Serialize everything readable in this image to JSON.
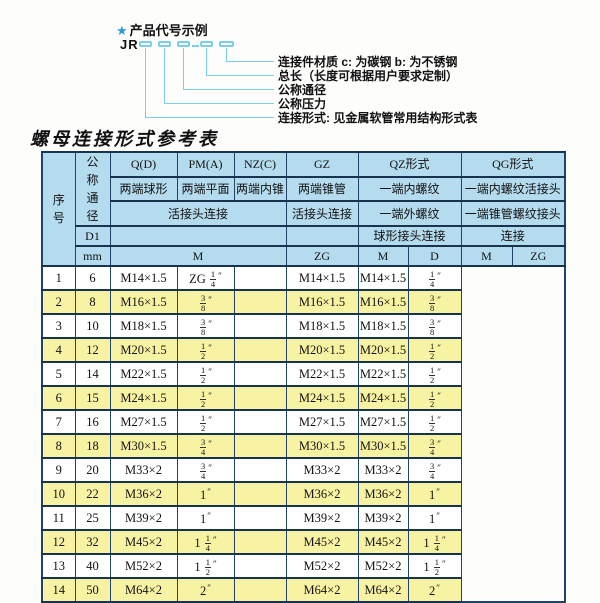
{
  "colors": {
    "header_bg": "#b5dcee",
    "row_alt_bg": "#f8f3a2",
    "border_col": "#1f4467",
    "accent_line": "#7ccde9",
    "star_col": "#2b9cd8"
  },
  "diagram": {
    "star": "★",
    "title": "产品代号示例",
    "code_prefix": "JR",
    "labels": [
      "连接件材质  c: 为碳钢  b: 为不锈钢",
      "总长（长度可根据用户要求定制）",
      "公称通径",
      "公称压力",
      "连接形式: 见金属软管常用结构形式表"
    ]
  },
  "table_title": "螺母连接形式参考表",
  "table": {
    "header": {
      "seq": "序\n号",
      "dn": "公\n称\n通\n径",
      "d1": "D1",
      "mm": "mm",
      "q": "Q(D)",
      "pm": "PM(A)",
      "nz": "NZ(C)",
      "gz": "GZ",
      "qz": "QZ形式",
      "qg": "QG形式",
      "q_ends": "两端球形",
      "pm_ends": "两端平面",
      "nz_ends": "两端内锥",
      "gz_ends": "两端锥管",
      "qz_ends": "一端内螺纹",
      "qg_ends": "一端内螺纹活接头",
      "qpn_conn": "活接头连接",
      "gz_conn": "活接头连接",
      "qz_conn2": "一端外螺纹",
      "qg_conn2": "一端锥管螺纹接头",
      "qz_conn3": "球形接头连接",
      "qg_conn3": "连接",
      "m": "M",
      "zg": "ZG",
      "qz_m": "M",
      "qz_d": "D",
      "qg_m": "M",
      "qg_zg": "ZG"
    },
    "columns": [
      "no",
      "dn_mm",
      "m",
      "gz_zg",
      "qz_m",
      "qz_d",
      "qg_m",
      "qg_zg"
    ],
    "rows": [
      [
        "1",
        "6",
        "M14×1.5",
        "ZG 1/4″",
        "",
        "M14×1.5",
        "M14×1.5",
        "1/4″"
      ],
      [
        "2",
        "8",
        "M16×1.5",
        "3/8″",
        "",
        "M16×1.5",
        "M16×1.5",
        "3/8″"
      ],
      [
        "3",
        "10",
        "M18×1.5",
        "3/8″",
        "",
        "M18×1.5",
        "M18×1.5",
        "3/8″"
      ],
      [
        "4",
        "12",
        "M20×1.5",
        "1/2″",
        "",
        "M20×1.5",
        "M20×1.5",
        "1/2″"
      ],
      [
        "5",
        "14",
        "M22×1.5",
        "1/2″",
        "",
        "M22×1.5",
        "M22×1.5",
        "1/2″"
      ],
      [
        "6",
        "15",
        "M24×1.5",
        "1/2″",
        "",
        "M24×1.5",
        "M24×1.5",
        "1/2″"
      ],
      [
        "7",
        "16",
        "M27×1.5",
        "1/2″",
        "",
        "M27×1.5",
        "M27×1.5",
        "1/2″"
      ],
      [
        "8",
        "18",
        "M30×1.5",
        "3/4″",
        "",
        "M30×1.5",
        "M30×1.5",
        "3/4″"
      ],
      [
        "9",
        "20",
        "M33×2",
        "3/4″",
        "",
        "M33×2",
        "M33×2",
        "3/4″"
      ],
      [
        "10",
        "22",
        "M36×2",
        "1″",
        "",
        "M36×2",
        "M36×2",
        "1″"
      ],
      [
        "11",
        "25",
        "M39×2",
        "1″",
        "",
        "M39×2",
        "M39×2",
        "1″"
      ],
      [
        "12",
        "32",
        "M45×2",
        "1 1/4″",
        "",
        "M45×2",
        "M45×2",
        "1 1/4″"
      ],
      [
        "13",
        "40",
        "M52×2",
        "1 1/2″",
        "",
        "M52×2",
        "M52×2",
        "1 1/2″"
      ],
      [
        "14",
        "50",
        "M64×2",
        "2″",
        "",
        "M64×2",
        "M64×2",
        "2″"
      ]
    ]
  }
}
